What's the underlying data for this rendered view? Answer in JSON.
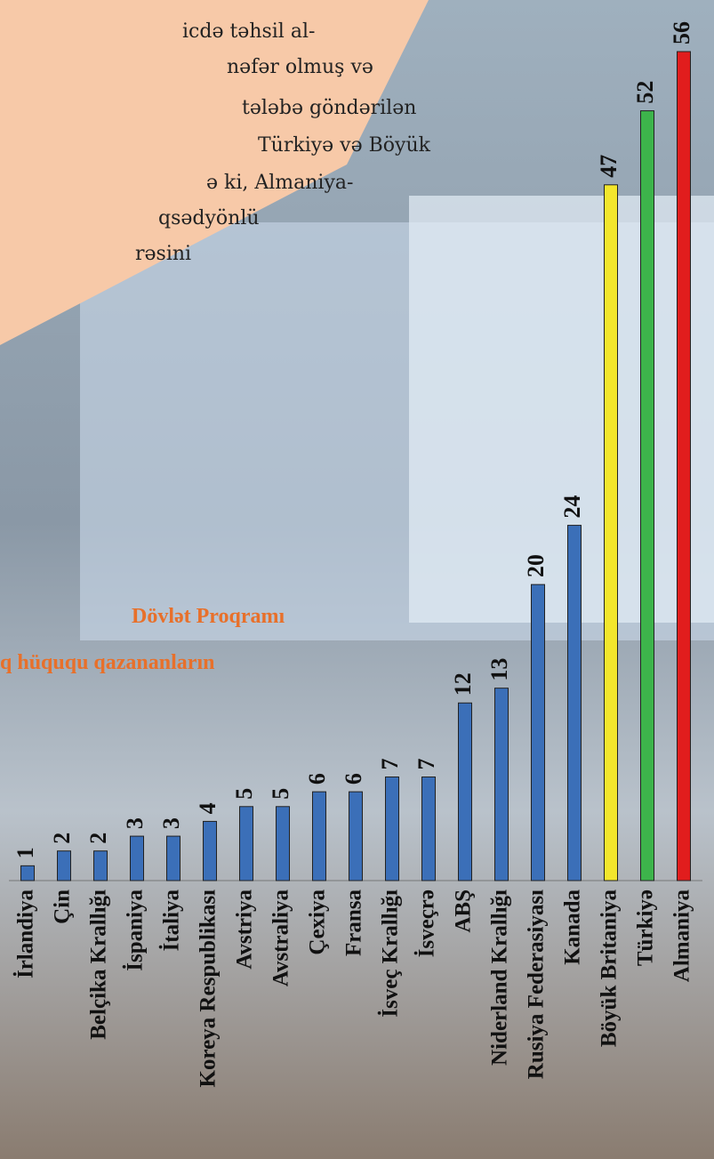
{
  "chart_data": {
    "type": "bar",
    "title_lines": [
      "Dövlət Proqramı",
      "q hüququ qazananların"
    ],
    "text_lines": [
      "icdə təhsil al-",
      "nəfər olmuş və",
      "tələbə göndərilən",
      "Türkiyə və Böyük",
      "ə ki, Almaniya-",
      "qsədyönlü",
      "rəsini"
    ],
    "categories": [
      "İrlandiya",
      "Çin",
      "Belçika Krallığı",
      "İspaniya",
      "İtaliya",
      "Koreya Respublikası",
      "Avstriya",
      "Avstraliya",
      "Çexiya",
      "Fransa",
      "İsveç Krallığı",
      "İsveçrə",
      "ABŞ",
      "Niderland Krallığı",
      "Rusiya Federasiyası",
      "Kanada",
      "Böyük Britaniya",
      "Türkiyə",
      "Almaniya"
    ],
    "values": [
      1,
      2,
      2,
      3,
      3,
      4,
      5,
      5,
      6,
      6,
      7,
      7,
      12,
      13,
      20,
      24,
      47,
      52,
      56
    ],
    "colors": [
      "#3b6fb8",
      "#3b6fb8",
      "#3b6fb8",
      "#3b6fb8",
      "#3b6fb8",
      "#3b6fb8",
      "#3b6fb8",
      "#3b6fb8",
      "#3b6fb8",
      "#3b6fb8",
      "#3b6fb8",
      "#3b6fb8",
      "#3b6fb8",
      "#3b6fb8",
      "#3b6fb8",
      "#3b6fb8",
      "#f3e62c",
      "#3db44b",
      "#e11d1d"
    ]
  }
}
